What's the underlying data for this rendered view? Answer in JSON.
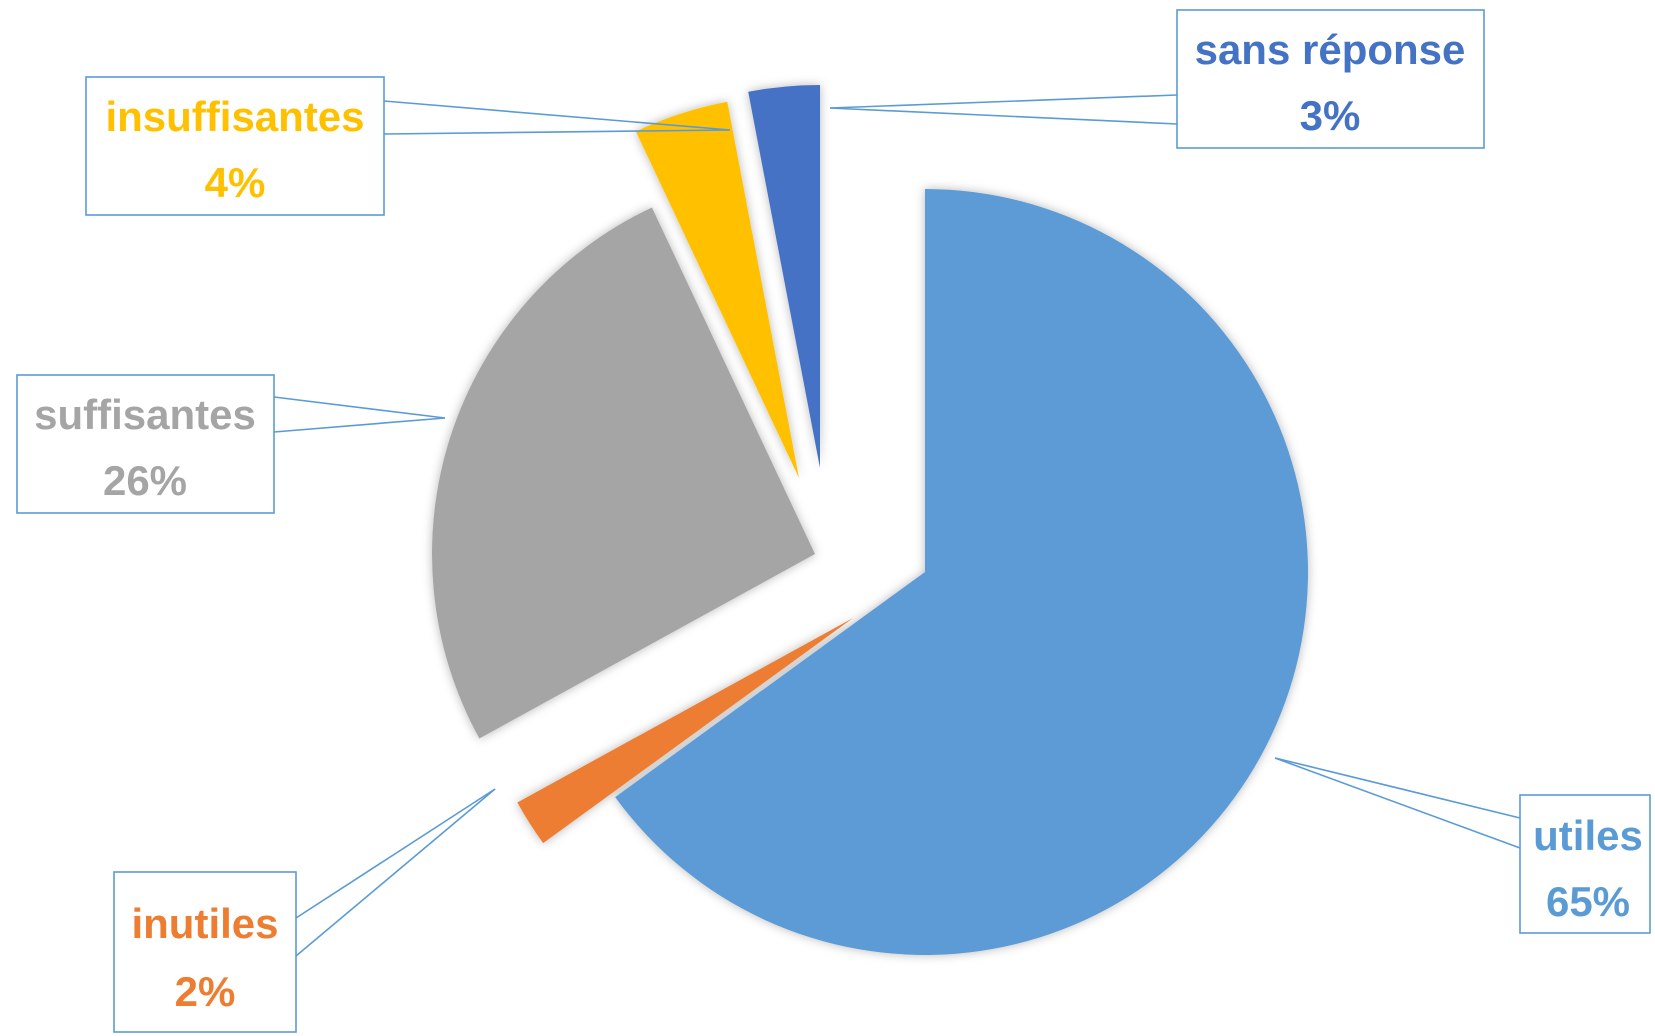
{
  "chart_data": {
    "type": "pie",
    "title": "",
    "exploded": true,
    "slices": [
      {
        "label": "utiles",
        "value": 65,
        "percent_label": "65%",
        "color": "#5b9bd5"
      },
      {
        "label": "inutiles",
        "value": 2,
        "percent_label": "2%",
        "color": "#ed7d31"
      },
      {
        "label": "suffisantes",
        "value": 26,
        "percent_label": "26%",
        "color": "#a5a5a5"
      },
      {
        "label": "insuffisantes",
        "value": 4,
        "percent_label": "4%",
        "color": "#ffc000"
      },
      {
        "label": "sans réponse",
        "value": 3,
        "percent_label": "3%",
        "color": "#4472c4"
      }
    ]
  },
  "colors": {
    "label_border": "#5b9bd5",
    "leader_line": "#5b9bd5",
    "shadow": "#d0d0d0"
  }
}
